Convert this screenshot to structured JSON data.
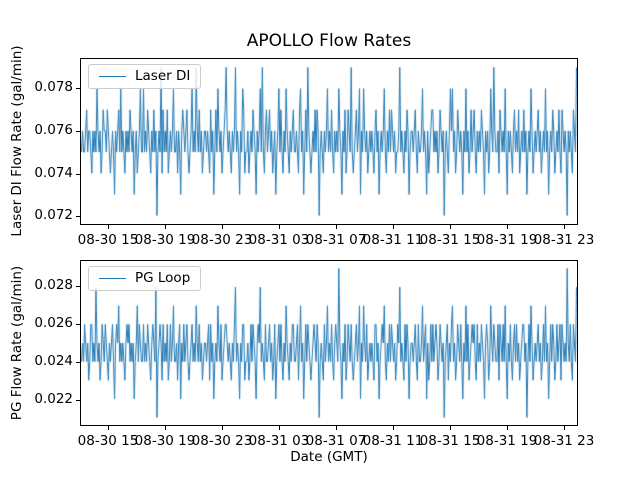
{
  "title": "APOLLO Flow Rates",
  "xlabel": "Date (GMT)",
  "style": {
    "line_color": "#1f77b4",
    "spine_color": "#000000",
    "legend_border_color": "#cccccc",
    "background": "#ffffff"
  },
  "xticks": {
    "fractions": [
      0.0562,
      0.1707,
      0.2851,
      0.3996,
      0.5141,
      0.6285,
      0.743,
      0.8574,
      0.9719
    ],
    "labels": [
      "08-30 15",
      "08-30 19",
      "08-30 23",
      "08-31 03",
      "08-31 07",
      "08-31 11",
      "08-31 15",
      "08-31 19",
      "08-31 23"
    ]
  },
  "chart_data": [
    {
      "type": "line",
      "name": "laser-di",
      "legend": "Laser DI",
      "ylabel": "Laser DI Flow Rate (gal/min)",
      "ylim": [
        0.0716,
        0.0794
      ],
      "yticks": {
        "values": [
          0.072,
          0.074,
          0.076,
          0.078
        ],
        "labels": [
          "0.072",
          "0.074",
          "0.076",
          "0.078"
        ]
      },
      "value_scale": 0.001,
      "values": [
        75,
        76,
        75,
        75,
        76,
        77,
        75,
        76,
        76,
        75,
        74,
        76,
        75,
        76,
        75,
        78,
        76,
        75,
        76,
        74,
        75,
        77,
        76,
        76,
        75,
        77,
        76,
        75,
        74,
        75,
        76,
        75,
        73,
        76,
        75,
        76,
        77,
        75,
        78,
        75,
        76,
        75,
        74,
        76,
        75,
        76,
        75,
        77,
        76,
        75,
        76,
        73,
        75,
        76,
        74,
        75,
        76,
        78,
        75,
        75,
        78,
        75,
        76,
        75,
        77,
        76,
        75,
        74,
        76,
        75,
        77,
        75,
        76,
        72,
        75,
        76,
        75,
        79,
        74,
        77,
        75,
        76,
        75,
        77,
        74,
        75,
        76,
        75,
        76,
        78,
        75,
        75,
        76,
        74,
        76,
        75,
        73,
        76,
        77,
        76,
        75,
        76,
        77,
        75,
        74,
        75,
        76,
        78,
        75,
        76,
        75,
        79,
        76,
        75,
        77,
        75,
        76,
        74,
        75,
        76,
        76,
        75,
        76,
        75,
        74,
        77,
        75,
        76,
        73,
        75,
        77,
        75,
        78,
        76,
        75,
        76,
        74,
        75,
        76,
        77,
        79,
        76,
        75,
        76,
        75,
        74,
        76,
        75,
        76,
        79,
        75,
        76,
        75,
        73,
        76,
        75,
        78,
        77,
        74,
        75,
        75,
        76,
        74,
        75,
        76,
        75,
        77,
        76,
        75,
        73,
        76,
        75,
        76,
        78,
        75,
        79,
        75,
        74,
        76,
        77,
        75,
        76,
        77,
        75,
        76,
        74,
        75,
        76,
        73,
        75,
        76,
        78,
        75,
        77,
        75,
        74,
        76,
        75,
        78,
        76,
        75,
        74,
        76,
        75,
        76,
        77,
        75,
        75,
        76,
        75,
        74,
        77,
        78,
        75,
        76,
        73,
        75,
        77,
        75,
        79,
        76,
        75,
        74,
        75,
        76,
        75,
        77,
        75,
        77,
        76,
        72,
        75,
        76,
        75,
        74,
        76,
        75,
        76,
        78,
        75,
        76,
        75,
        77,
        75,
        74,
        76,
        75,
        76,
        75,
        78,
        76,
        75,
        73,
        76,
        75,
        77,
        74,
        75,
        77,
        76,
        75,
        79,
        75,
        74,
        75,
        76,
        77,
        75,
        76,
        78,
        73,
        76,
        75,
        78,
        76,
        75,
        76,
        74,
        75,
        76,
        75,
        76,
        75,
        74,
        76,
        77,
        75,
        76,
        73,
        75,
        76,
        75,
        76,
        78,
        75,
        74,
        76,
        75,
        77,
        75,
        77,
        76,
        75,
        76,
        74,
        75,
        75,
        76,
        79,
        75,
        76,
        75,
        74,
        76,
        75,
        77,
        76,
        73,
        75,
        76,
        76,
        75,
        76,
        77,
        75,
        74,
        76,
        75,
        75,
        76,
        78,
        75,
        76,
        75,
        73,
        76,
        74,
        75,
        76,
        77,
        77,
        75,
        76,
        75,
        76,
        74,
        75,
        77,
        76,
        75,
        76,
        72,
        75,
        76,
        75,
        74,
        76,
        78,
        76,
        78,
        75,
        76,
        74,
        75,
        77,
        76,
        75,
        76,
        75,
        73,
        76,
        75,
        78,
        75,
        76,
        74,
        75,
        77,
        75,
        76,
        77,
        75,
        74,
        76,
        75,
        76,
        75,
        77,
        76,
        75,
        73,
        76,
        75,
        76,
        74,
        75,
        78,
        76,
        75,
        79,
        76,
        75,
        75,
        76,
        74,
        77,
        76,
        75,
        76,
        75,
        78,
        75,
        73,
        76,
        75,
        76,
        75,
        74,
        76,
        77,
        75,
        76,
        75,
        77,
        74,
        75,
        76,
        75,
        77,
        75,
        76,
        73,
        75,
        76,
        75,
        78,
        76,
        74,
        75,
        76,
        75,
        76,
        77,
        75,
        76,
        74,
        75,
        76,
        75,
        78,
        75,
        76,
        73,
        75,
        76,
        75,
        77,
        76,
        74,
        75,
        76,
        75,
        77,
        75,
        74,
        77,
        76,
        75,
        76,
        75,
        72,
        76,
        75,
        76,
        75,
        74,
        77,
        76,
        75,
        79
      ]
    },
    {
      "type": "line",
      "name": "pg-loop",
      "legend": "PG Loop",
      "ylabel": "PG Flow Rate (gal/min)",
      "ylim": [
        0.0206,
        0.0294
      ],
      "yticks": {
        "values": [
          0.022,
          0.024,
          0.026,
          0.028
        ],
        "labels": [
          "0.022",
          "0.024",
          "0.026",
          "0.028"
        ]
      },
      "value_scale": 0.001,
      "values": [
        24,
        25,
        24,
        26,
        25,
        24,
        25,
        23,
        24,
        26,
        26,
        24,
        25,
        24,
        28,
        25,
        24,
        25,
        23,
        24,
        26,
        25,
        24,
        26,
        25,
        24,
        23,
        25,
        24,
        25,
        26,
        24,
        22,
        25,
        26,
        25,
        27,
        24,
        25,
        24,
        25,
        24,
        23,
        25,
        26,
        25,
        26,
        24,
        25,
        24,
        25,
        22,
        24,
        25,
        27,
        24,
        26,
        25,
        24,
        24,
        26,
        24,
        25,
        24,
        26,
        25,
        24,
        23,
        25,
        26,
        25,
        24,
        28,
        21,
        24,
        25,
        26,
        25,
        23,
        26,
        24,
        25,
        24,
        26,
        23,
        24,
        26,
        24,
        25,
        27,
        24,
        24,
        25,
        23,
        25,
        26,
        22,
        25,
        24,
        26,
        24,
        25,
        26,
        24,
        23,
        24,
        25,
        26,
        24,
        25,
        24,
        27,
        25,
        24,
        26,
        24,
        25,
        23,
        24,
        25,
        25,
        24,
        25,
        26,
        23,
        26,
        24,
        25,
        22,
        24,
        25,
        24,
        27,
        25,
        24,
        26,
        23,
        24,
        25,
        26,
        26,
        25,
        24,
        25,
        24,
        23,
        25,
        24,
        26,
        28,
        24,
        25,
        24,
        22,
        25,
        24,
        26,
        26,
        23,
        24,
        24,
        25,
        23,
        24,
        26,
        24,
        26,
        25,
        24,
        22,
        25,
        26,
        25,
        28,
        24,
        25,
        24,
        23,
        26,
        24,
        24,
        25,
        26,
        24,
        25,
        23,
        24,
        26,
        22,
        24,
        25,
        26,
        24,
        26,
        24,
        23,
        25,
        24,
        27,
        25,
        24,
        23,
        25,
        24,
        26,
        26,
        24,
        24,
        25,
        26,
        23,
        25,
        27,
        24,
        25,
        22,
        24,
        26,
        24,
        26,
        25,
        24,
        23,
        24,
        25,
        26,
        25,
        24,
        26,
        25,
        21,
        24,
        25,
        24,
        23,
        26,
        24,
        25,
        27,
        24,
        25,
        24,
        26,
        24,
        23,
        25,
        26,
        25,
        24,
        29,
        25,
        24,
        22,
        25,
        24,
        26,
        23,
        24,
        26,
        25,
        24,
        26,
        24,
        23,
        24,
        25,
        26,
        24,
        25,
        27,
        22,
        25,
        24,
        27,
        25,
        24,
        26,
        23,
        24,
        25,
        24,
        25,
        24,
        23,
        26,
        26,
        24,
        25,
        22,
        24,
        25,
        26,
        25,
        27,
        24,
        23,
        25,
        24,
        26,
        24,
        26,
        25,
        24,
        25,
        23,
        24,
        26,
        25,
        28,
        24,
        25,
        24,
        23,
        26,
        24,
        26,
        25,
        22,
        24,
        25,
        25,
        24,
        25,
        26,
        24,
        23,
        26,
        24,
        24,
        25,
        27,
        24,
        25,
        26,
        22,
        25,
        23,
        24,
        26,
        24,
        26,
        24,
        25,
        26,
        25,
        23,
        24,
        26,
        25,
        24,
        25,
        21,
        24,
        25,
        26,
        23,
        25,
        24,
        26,
        27,
        24,
        25,
        23,
        24,
        26,
        25,
        24,
        26,
        24,
        22,
        25,
        24,
        27,
        24,
        26,
        23,
        24,
        25,
        26,
        25,
        26,
        24,
        23,
        26,
        24,
        25,
        24,
        26,
        25,
        24,
        22,
        25,
        26,
        25,
        23,
        24,
        27,
        25,
        24,
        26,
        25,
        24,
        24,
        26,
        23,
        26,
        25,
        24,
        26,
        24,
        27,
        24,
        22,
        25,
        24,
        26,
        24,
        23,
        25,
        26,
        24,
        26,
        24,
        25,
        23,
        24,
        25,
        26,
        26,
        24,
        25,
        21,
        24,
        26,
        24,
        27,
        25,
        23,
        24,
        25,
        24,
        25,
        26,
        24,
        25,
        23,
        24,
        26,
        24,
        27,
        24,
        25,
        22,
        24,
        26,
        24,
        26,
        25,
        23,
        24,
        26,
        24,
        25,
        26,
        23,
        26,
        25,
        24,
        25,
        24,
        29,
        25,
        24,
        26,
        24,
        23,
        26,
        25,
        24,
        28
      ]
    }
  ]
}
